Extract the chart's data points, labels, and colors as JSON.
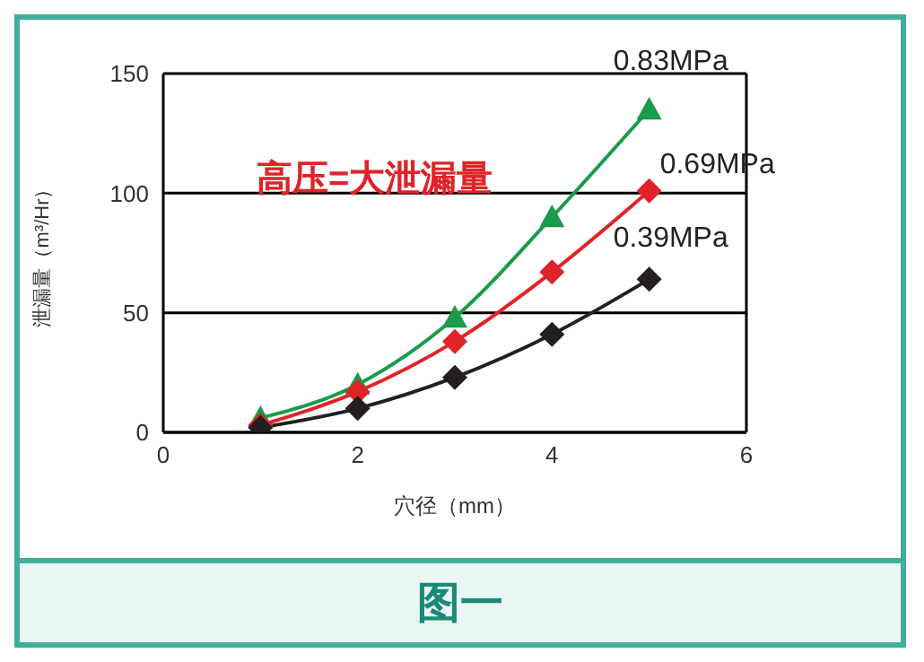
{
  "chart_data": {
    "type": "line",
    "xlabel": "穴径（mm）",
    "ylabel": "泄漏量（m³/Hr）",
    "x": [
      1,
      2,
      3,
      4,
      5
    ],
    "xlim": [
      0,
      6
    ],
    "xticks": [
      0,
      2,
      4,
      6
    ],
    "ylim": [
      0,
      150
    ],
    "yticks": [
      0,
      50,
      100,
      150
    ],
    "grid": "y",
    "line_style": "solid",
    "annotations": [
      "高压=大泄漏量",
      "图一"
    ],
    "series": [
      {
        "name": "0.83MPa",
        "color": "#1a9a4a",
        "marker": "triangle",
        "values": [
          6,
          20,
          48,
          90,
          135
        ]
      },
      {
        "name": "0.69MPa",
        "color": "#e02329",
        "marker": "diamond",
        "values": [
          3,
          17,
          38,
          67,
          101
        ]
      },
      {
        "name": "0.39MPa",
        "color": "#231f20",
        "marker": "diamond",
        "values": [
          2,
          10,
          23,
          41,
          64
        ]
      }
    ]
  }
}
